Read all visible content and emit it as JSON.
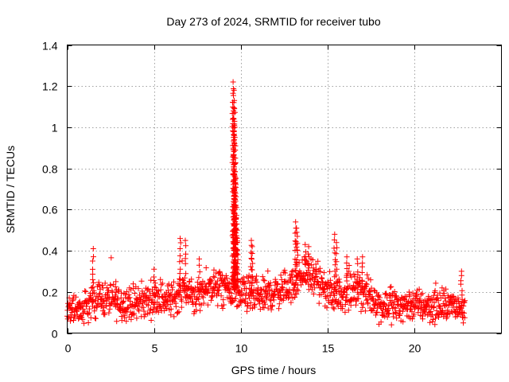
{
  "chart_data": {
    "type": "scatter",
    "title": "Day 273 of 2024, SRMTID for receiver tubo",
    "xlabel": "GPS time / hours",
    "ylabel": "SRMTID / TECUs",
    "xlim": [
      0,
      25
    ],
    "ylim": [
      0,
      1.4
    ],
    "xticks": [
      0,
      5,
      10,
      15,
      20
    ],
    "yticks": [
      0,
      0.2,
      0.4,
      0.6,
      0.8,
      1,
      1.2,
      1.4
    ],
    "ytick_labels": [
      "0",
      "0.2",
      "0.4",
      "0.6",
      "0.8",
      "1",
      "1.2",
      "1.4"
    ],
    "xtick_labels": [
      "0",
      "5",
      "10",
      "15",
      "20"
    ],
    "grid": true,
    "marker": "+",
    "color": "#ff0000",
    "data_end_hour": 22.9,
    "baseline": [
      [
        0.0,
        0.12
      ],
      [
        1.0,
        0.11
      ],
      [
        1.5,
        0.16
      ],
      [
        2.0,
        0.17
      ],
      [
        3.0,
        0.15
      ],
      [
        4.0,
        0.14
      ],
      [
        5.0,
        0.17
      ],
      [
        6.0,
        0.16
      ],
      [
        6.7,
        0.21
      ],
      [
        7.5,
        0.17
      ],
      [
        8.0,
        0.22
      ],
      [
        9.0,
        0.22
      ],
      [
        9.5,
        0.2
      ],
      [
        10.0,
        0.19
      ],
      [
        11.0,
        0.17
      ],
      [
        12.0,
        0.2
      ],
      [
        13.0,
        0.23
      ],
      [
        13.7,
        0.3
      ],
      [
        14.5,
        0.24
      ],
      [
        15.0,
        0.19
      ],
      [
        16.0,
        0.19
      ],
      [
        17.0,
        0.2
      ],
      [
        18.0,
        0.14
      ],
      [
        19.0,
        0.14
      ],
      [
        20.0,
        0.14
      ],
      [
        21.0,
        0.13
      ],
      [
        22.0,
        0.13
      ],
      [
        22.9,
        0.13
      ]
    ],
    "spikes": [
      {
        "x": 1.5,
        "y": 0.41
      },
      {
        "x": 2.8,
        "y": 0.25
      },
      {
        "x": 5.0,
        "y": 0.31
      },
      {
        "x": 6.5,
        "y": 0.46
      },
      {
        "x": 6.8,
        "y": 0.45
      },
      {
        "x": 7.6,
        "y": 0.36
      },
      {
        "x": 9.55,
        "y": 1.22
      },
      {
        "x": 9.6,
        "y": 1.18
      },
      {
        "x": 9.62,
        "y": 1.13
      },
      {
        "x": 9.58,
        "y": 1.08
      },
      {
        "x": 9.65,
        "y": 1.0
      },
      {
        "x": 9.6,
        "y": 0.98
      },
      {
        "x": 9.68,
        "y": 0.85
      },
      {
        "x": 9.62,
        "y": 0.82
      },
      {
        "x": 9.7,
        "y": 0.75
      },
      {
        "x": 9.66,
        "y": 0.65
      },
      {
        "x": 9.74,
        "y": 0.61
      },
      {
        "x": 9.72,
        "y": 0.56
      },
      {
        "x": 9.78,
        "y": 0.5
      },
      {
        "x": 9.8,
        "y": 0.44
      },
      {
        "x": 10.6,
        "y": 0.45
      },
      {
        "x": 10.65,
        "y": 0.42
      },
      {
        "x": 13.15,
        "y": 0.54
      },
      {
        "x": 13.2,
        "y": 0.51
      },
      {
        "x": 13.25,
        "y": 0.47
      },
      {
        "x": 13.7,
        "y": 0.43
      },
      {
        "x": 13.9,
        "y": 0.42
      },
      {
        "x": 15.4,
        "y": 0.48
      },
      {
        "x": 15.5,
        "y": 0.44
      },
      {
        "x": 16.1,
        "y": 0.37
      },
      {
        "x": 16.7,
        "y": 0.36
      },
      {
        "x": 17.0,
        "y": 0.37
      },
      {
        "x": 22.7,
        "y": 0.3
      }
    ]
  }
}
